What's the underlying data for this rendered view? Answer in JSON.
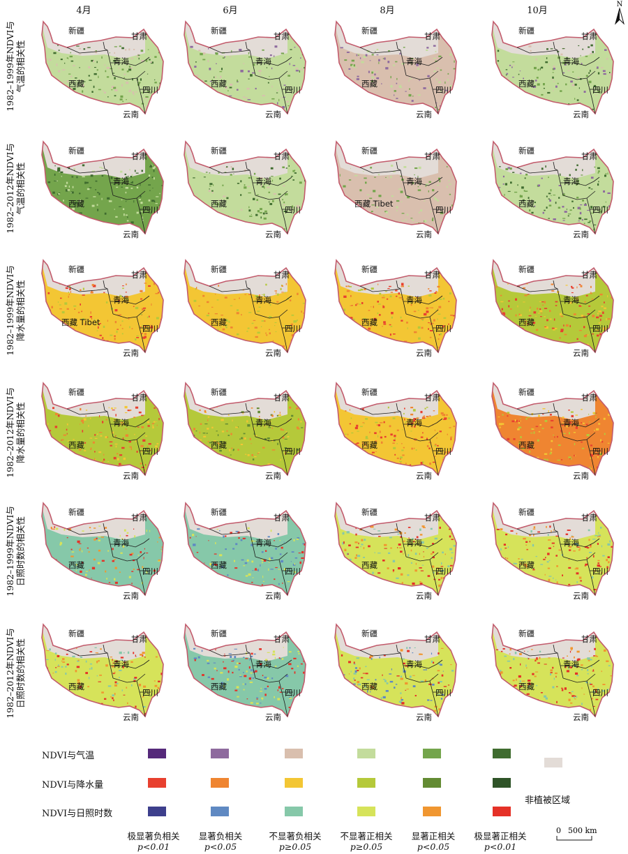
{
  "columns": [
    "4月",
    "6月",
    "8月",
    "10月"
  ],
  "rows": [
    {
      "label": [
        "1982–1999年NDVI与",
        "气温的相关性"
      ],
      "type": "temp"
    },
    {
      "label": [
        "1982–2012年NDVI与",
        "气温的相关性"
      ],
      "type": "temp"
    },
    {
      "label": [
        "1982–1999年NDVI与",
        "降水量的相关性"
      ],
      "type": "precip"
    },
    {
      "label": [
        "1982–2012年NDVI与",
        "降水量的相关性"
      ],
      "type": "precip"
    },
    {
      "label": [
        "1982–1999年NDVI与",
        "日照时数的相关性"
      ],
      "type": "sun"
    },
    {
      "label": [
        "1982–2012年NDVI与",
        "日照时数的相关性"
      ],
      "type": "sun"
    }
  ],
  "provinces": {
    "xinjiang": "新疆",
    "gansu": "甘肃",
    "qinghai": "青海",
    "xizang": "西藏",
    "sichuan": "四川",
    "yunnan": "云南",
    "xizang_tibet": "西藏 Tibet"
  },
  "legend": {
    "rows": [
      {
        "label": "NDVI与气温",
        "colors": [
          "#55297a",
          "#8e6a9e",
          "#d9bfae",
          "#c3dc9c",
          "#74a54c",
          "#3f6c2f"
        ]
      },
      {
        "label": "NDVI与降水量",
        "colors": [
          "#e8402f",
          "#ef8531",
          "#f3c634",
          "#b5c93a",
          "#638b33",
          "#2f5428"
        ]
      },
      {
        "label": "NDVI与日照时数",
        "colors": [
          "#3d3f8c",
          "#5f89c2",
          "#86c8a9",
          "#d6e35a",
          "#f09630",
          "#e53127"
        ]
      }
    ],
    "categories": [
      {
        "label": "极显著负相关",
        "p": "p<0.01"
      },
      {
        "label": "显著负相关",
        "p": "p<0.05"
      },
      {
        "label": "不显著负相关",
        "p": "p≥0.05"
      },
      {
        "label": "不显著正相关",
        "p": "p≥0.05"
      },
      {
        "label": "显著正相关",
        "p": "p<0.05"
      },
      {
        "label": "极显著正相关",
        "p": "p<0.01"
      }
    ],
    "nonveg": {
      "label": "非植被区域",
      "color": "#e3dcd7"
    }
  },
  "north_label": "N",
  "scale": {
    "zero": "0",
    "value": "500 km"
  },
  "panels": [
    {
      "row": 0,
      "col": 0,
      "base": "#c3dc9c",
      "spots": [
        "#3f6c2f",
        "#74a54c",
        "#d9bfae"
      ],
      "density": 0.55
    },
    {
      "row": 0,
      "col": 1,
      "base": "#c3dc9c",
      "spots": [
        "#74a54c",
        "#3f6c2f",
        "#d9bfae",
        "#8e6a9e"
      ],
      "density": 0.45
    },
    {
      "row": 0,
      "col": 2,
      "base": "#d9bfae",
      "spots": [
        "#c3dc9c",
        "#74a54c",
        "#8e6a9e"
      ],
      "density": 0.5
    },
    {
      "row": 0,
      "col": 3,
      "base": "#c3dc9c",
      "spots": [
        "#74a54c",
        "#3f6c2f",
        "#d9bfae",
        "#8e6a9e"
      ],
      "density": 0.5
    },
    {
      "row": 1,
      "col": 0,
      "base": "#74a54c",
      "spots": [
        "#3f6c2f",
        "#c3dc9c"
      ],
      "density": 0.6
    },
    {
      "row": 1,
      "col": 1,
      "base": "#c3dc9c",
      "spots": [
        "#74a54c",
        "#3f6c2f",
        "#d9bfae"
      ],
      "density": 0.5
    },
    {
      "row": 1,
      "col": 2,
      "base": "#d9bfae",
      "spots": [
        "#c3dc9c",
        "#74a54c"
      ],
      "density": 0.4
    },
    {
      "row": 1,
      "col": 3,
      "base": "#c3dc9c",
      "spots": [
        "#74a54c",
        "#3f6c2f",
        "#8e6a9e"
      ],
      "density": 0.55
    },
    {
      "row": 2,
      "col": 0,
      "base": "#f3c634",
      "spots": [
        "#ef8531",
        "#e8402f",
        "#b5c93a"
      ],
      "density": 0.5
    },
    {
      "row": 2,
      "col": 1,
      "base": "#f3c634",
      "spots": [
        "#b5c93a",
        "#ef8531"
      ],
      "density": 0.45
    },
    {
      "row": 2,
      "col": 2,
      "base": "#f3c634",
      "spots": [
        "#ef8531",
        "#e8402f",
        "#b5c93a"
      ],
      "density": 0.55
    },
    {
      "row": 2,
      "col": 3,
      "base": "#b5c93a",
      "spots": [
        "#e8402f",
        "#ef8531",
        "#f3c634"
      ],
      "density": 0.6
    },
    {
      "row": 3,
      "col": 0,
      "base": "#b5c93a",
      "spots": [
        "#f3c634",
        "#ef8531",
        "#e8402f"
      ],
      "density": 0.55
    },
    {
      "row": 3,
      "col": 1,
      "base": "#b5c93a",
      "spots": [
        "#638b33",
        "#f3c634",
        "#ef8531"
      ],
      "density": 0.5
    },
    {
      "row": 3,
      "col": 2,
      "base": "#f3c634",
      "spots": [
        "#ef8531",
        "#e8402f",
        "#b5c93a"
      ],
      "density": 0.6
    },
    {
      "row": 3,
      "col": 3,
      "base": "#ef8531",
      "spots": [
        "#e8402f",
        "#f3c634",
        "#b5c93a"
      ],
      "density": 0.6
    },
    {
      "row": 4,
      "col": 0,
      "base": "#86c8a9",
      "spots": [
        "#d6e35a",
        "#e53127",
        "#f09630"
      ],
      "density": 0.45
    },
    {
      "row": 4,
      "col": 1,
      "base": "#86c8a9",
      "spots": [
        "#d6e35a",
        "#5f89c2",
        "#e53127"
      ],
      "density": 0.45
    },
    {
      "row": 4,
      "col": 2,
      "base": "#d6e35a",
      "spots": [
        "#86c8a9",
        "#e53127",
        "#f09630"
      ],
      "density": 0.55
    },
    {
      "row": 4,
      "col": 3,
      "base": "#d6e35a",
      "spots": [
        "#e53127",
        "#f09630",
        "#86c8a9"
      ],
      "density": 0.55
    },
    {
      "row": 5,
      "col": 0,
      "base": "#d6e35a",
      "spots": [
        "#e53127",
        "#f09630",
        "#86c8a9"
      ],
      "density": 0.55
    },
    {
      "row": 5,
      "col": 1,
      "base": "#86c8a9",
      "spots": [
        "#5f89c2",
        "#d6e35a",
        "#e53127"
      ],
      "density": 0.5
    },
    {
      "row": 5,
      "col": 2,
      "base": "#d6e35a",
      "spots": [
        "#e53127",
        "#f09630",
        "#86c8a9",
        "#5f89c2"
      ],
      "density": 0.6
    },
    {
      "row": 5,
      "col": 3,
      "base": "#d6e35a",
      "spots": [
        "#e53127",
        "#f09630",
        "#86c8a9"
      ],
      "density": 0.6
    }
  ]
}
